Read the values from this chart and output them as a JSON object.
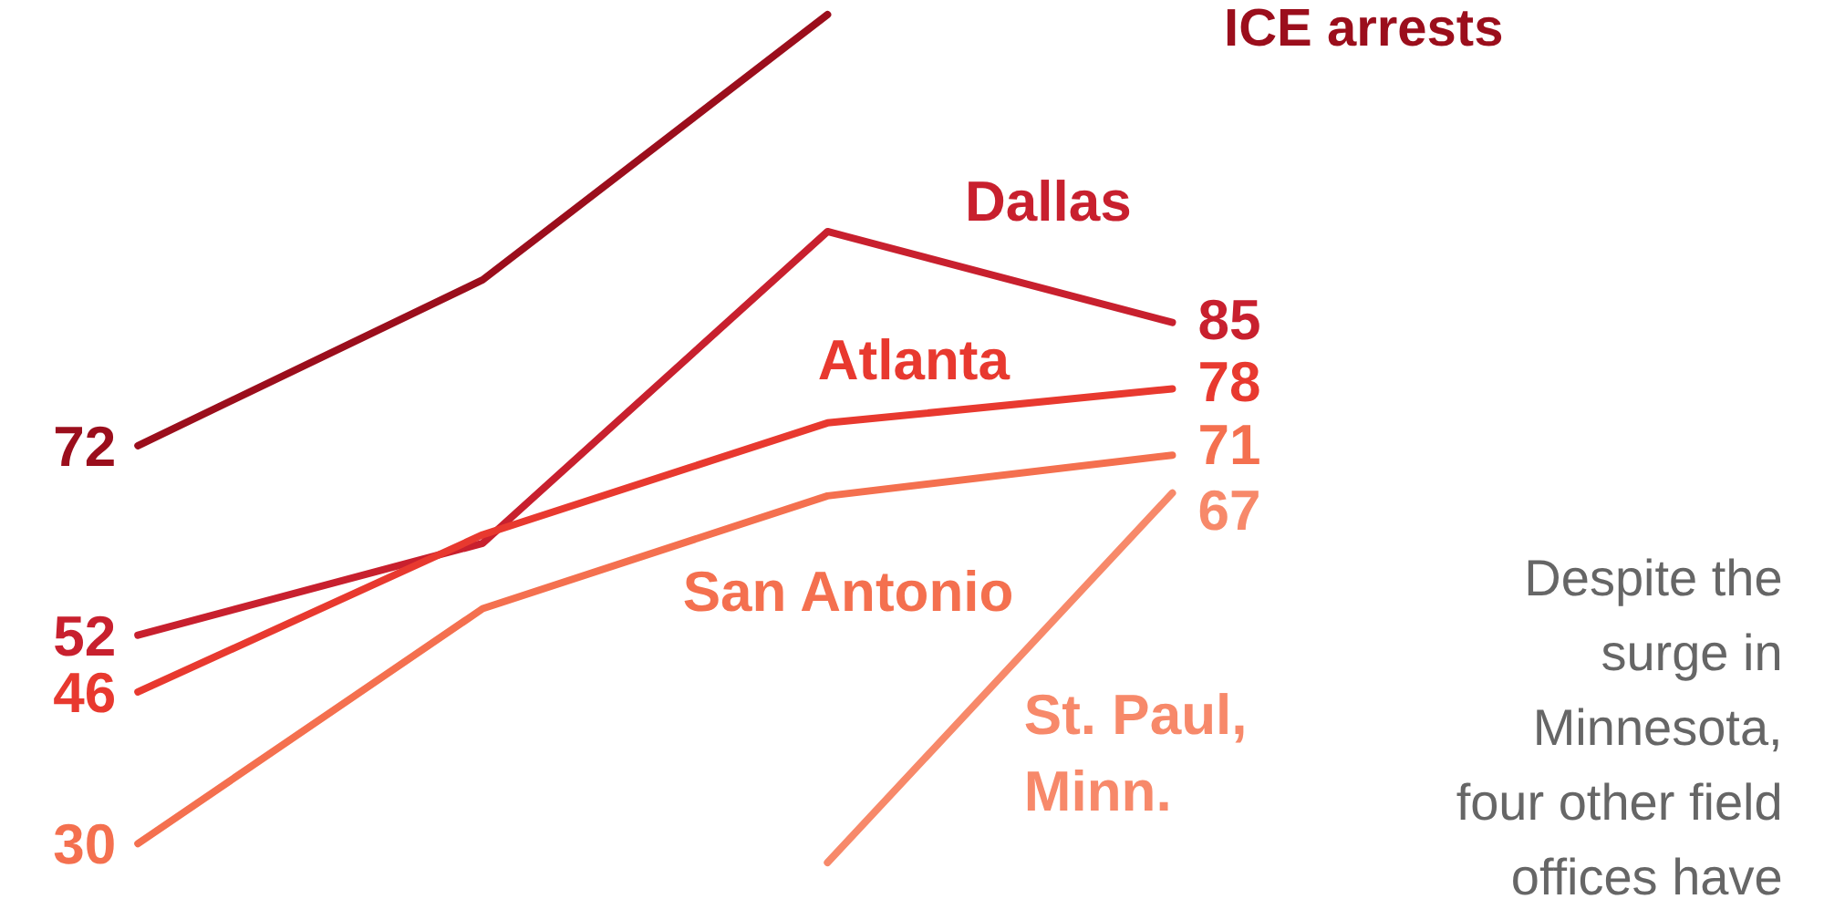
{
  "chart_data": {
    "type": "line",
    "tick_labels": false,
    "marker": "none",
    "line_style": "solid",
    "categories": [
      null,
      null,
      null,
      null
    ],
    "series": [
      {
        "color": "#9b0e1c",
        "values": [
          72,
          89.5,
          117.5,
          null
        ],
        "value_labels": [
          "72",
          null,
          null,
          null
        ]
      },
      {
        "name": "Dallas",
        "color": "#c8202e",
        "values": [
          52,
          61.7,
          94.6,
          85
        ],
        "value_labels": [
          "52",
          null,
          null,
          "85"
        ]
      },
      {
        "name": "Atlanta",
        "color": "#e8392f",
        "values": [
          46,
          62.6,
          74.4,
          78
        ],
        "value_labels": [
          "46",
          null,
          null,
          "78"
        ]
      },
      {
        "name": "San Antonio",
        "color": "#f4704f",
        "values": [
          30,
          54.8,
          66.7,
          71
        ],
        "value_labels": [
          "30",
          null,
          null,
          "71"
        ]
      },
      {
        "name": "St. Paul,\nMinn.",
        "color": "#f7896a",
        "values": [
          null,
          null,
          28,
          67
        ],
        "value_labels": [
          null,
          null,
          null,
          "67"
        ]
      }
    ],
    "annotations": [
      "ICE arrests",
      "Despite the\nsurge in\nMinnesota,\nfour other field\noffices have"
    ]
  }
}
